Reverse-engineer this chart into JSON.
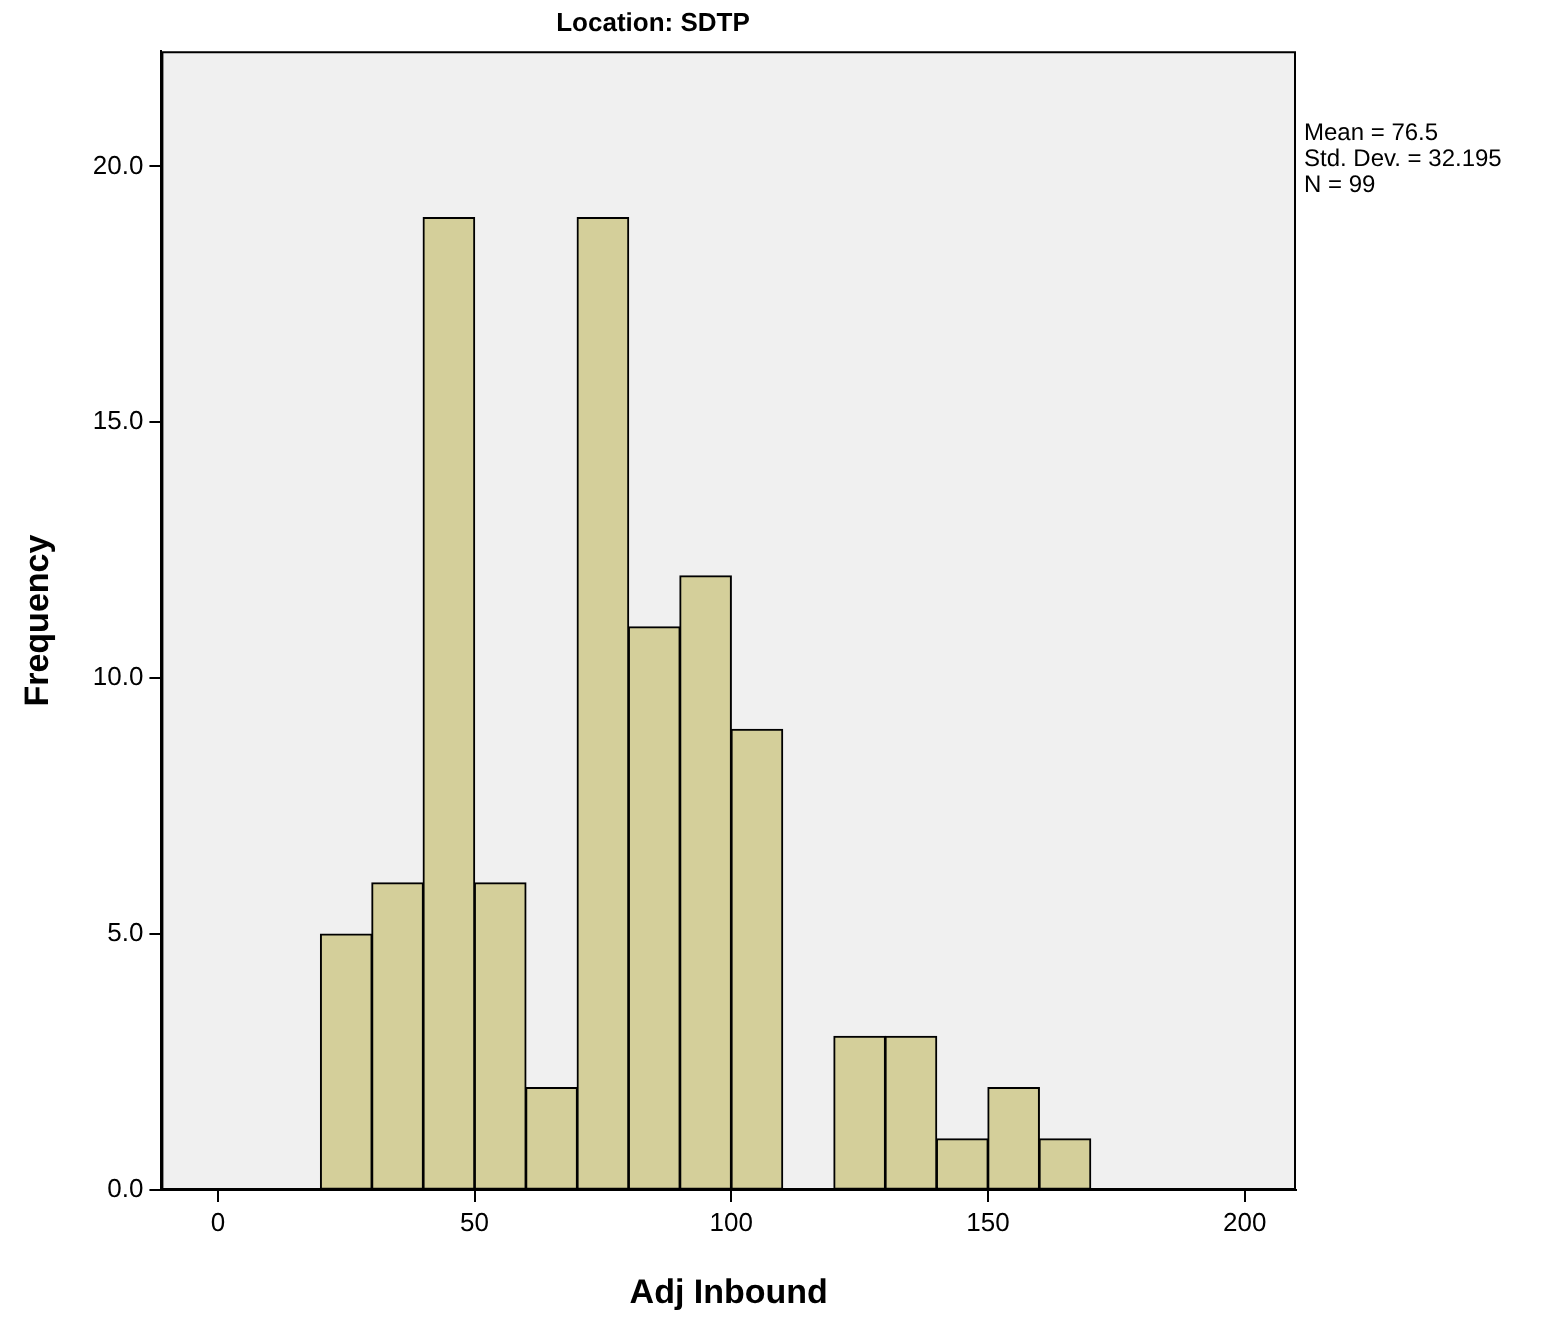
{
  "chart_data": {
    "type": "histogram",
    "title": "Location: SDTP",
    "xlabel": "Adj Inbound",
    "ylabel": "Frequency",
    "bins": [
      20,
      30,
      40,
      50,
      60,
      70,
      80,
      90,
      100,
      110,
      120,
      130,
      140,
      150,
      160,
      170
    ],
    "values": [
      5,
      6,
      19,
      6,
      2,
      19,
      11,
      12,
      9,
      0,
      3,
      3,
      1,
      2,
      1
    ],
    "color": "#d4cf9a",
    "xlim": [
      -11,
      210
    ],
    "xticks": [
      0,
      50,
      100,
      150,
      200
    ],
    "ylim": [
      0,
      22.25
    ],
    "yticks": [
      {
        "value": 0,
        "label": "0.0"
      },
      {
        "value": 5,
        "label": "5.0"
      },
      {
        "value": 10,
        "label": "10.0"
      },
      {
        "value": 15,
        "label": "15.0"
      },
      {
        "value": 20,
        "label": "20.0"
      }
    ],
    "grid": false,
    "legend": false,
    "annotations": [
      "Mean = 76.5",
      "Std. Dev. = 32.195",
      "N = 99"
    ]
  }
}
